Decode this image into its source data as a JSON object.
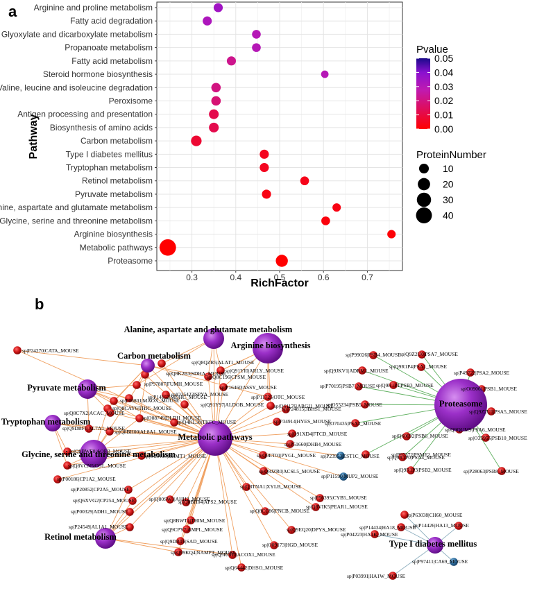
{
  "chart_data": [
    {
      "type": "scatter",
      "panel_label": "a",
      "title": "",
      "xlabel": "RichFactor",
      "ylabel": "Pathway",
      "xlim": [
        0.22,
        0.78
      ],
      "xticks": [
        "0.3",
        "0.4",
        "0.5",
        "0.6",
        "0.7"
      ],
      "grid": true,
      "points": [
        {
          "pathway": "Arginine and proline metabolism",
          "richfactor": 0.36,
          "pvalue": 0.035,
          "proteins": 8
        },
        {
          "pathway": "Fatty acid degradation",
          "richfactor": 0.335,
          "pvalue": 0.032,
          "proteins": 8
        },
        {
          "pathway": "Glyoxylate and dicarboxylate metabolism",
          "richfactor": 0.447,
          "pvalue": 0.03,
          "proteins": 7
        },
        {
          "pathway": "Propanoate metabolism",
          "richfactor": 0.447,
          "pvalue": 0.03,
          "proteins": 7
        },
        {
          "pathway": "Fatty acid metabolism",
          "richfactor": 0.39,
          "pvalue": 0.022,
          "proteins": 8
        },
        {
          "pathway": "Steroid hormone biosynthesis",
          "richfactor": 0.603,
          "pvalue": 0.03,
          "proteins": 4
        },
        {
          "pathway": "Valine, leucine and isoleucine degradation",
          "richfactor": 0.355,
          "pvalue": 0.02,
          "proteins": 9
        },
        {
          "pathway": "Peroxisome",
          "richfactor": 0.355,
          "pvalue": 0.018,
          "proteins": 9
        },
        {
          "pathway": "Antigen processing and presentation",
          "richfactor": 0.35,
          "pvalue": 0.012,
          "proteins": 10
        },
        {
          "pathway": "Biosynthesis of amino acids",
          "richfactor": 0.35,
          "pvalue": 0.012,
          "proteins": 10
        },
        {
          "pathway": "Carbon metabolism",
          "richfactor": 0.31,
          "pvalue": 0.008,
          "proteins": 13
        },
        {
          "pathway": "Type I diabetes mellitus",
          "richfactor": 0.465,
          "pvalue": 0.005,
          "proteins": 8
        },
        {
          "pathway": "Tryptophan metabolism",
          "richfactor": 0.465,
          "pvalue": 0.005,
          "proteins": 8
        },
        {
          "pathway": "Retinol metabolism",
          "richfactor": 0.557,
          "pvalue": 0.004,
          "proteins": 7
        },
        {
          "pathway": "Pyruvate metabolism",
          "richfactor": 0.47,
          "pvalue": 0.003,
          "proteins": 8
        },
        {
          "pathway": "Alanine, aspartate and glutamate metabolism",
          "richfactor": 0.63,
          "pvalue": 0.003,
          "proteins": 6
        },
        {
          "pathway": "Glycine, serine and threonine metabolism",
          "richfactor": 0.605,
          "pvalue": 0.002,
          "proteins": 7
        },
        {
          "pathway": "Arginine biosynthesis",
          "richfactor": 0.755,
          "pvalue": 0.001,
          "proteins": 6
        },
        {
          "pathway": "Metabolic pathways",
          "richfactor": 0.245,
          "pvalue": 0.0,
          "proteins": 44
        },
        {
          "pathway": "Proteasome",
          "richfactor": 0.505,
          "pvalue": 0.0,
          "proteins": 19
        }
      ],
      "color_legend": {
        "title": "Pvalue",
        "ticks": [
          "0.05",
          "0.04",
          "0.03",
          "0.02",
          "0.01",
          "0.00"
        ],
        "range": [
          0.0,
          0.05
        ],
        "low_color": "#ff0000",
        "mid_color": "#a010d0",
        "high_color": "#1a0a8a"
      },
      "size_legend": {
        "title": "ProteinNumber",
        "values": [
          10,
          20,
          30,
          40
        ],
        "labels": [
          "10",
          "20",
          "30",
          "40"
        ]
      }
    },
    {
      "type": "network",
      "panel_label": "b",
      "hubs": [
        {
          "id": "metabolic",
          "label": "Metabolic pathways",
          "size": 44
        },
        {
          "id": "proteasome",
          "label": "Proteasome",
          "size": 19
        },
        {
          "id": "alanine",
          "label": "Alanine, aspartate and glutamate metabolism",
          "size": 6
        },
        {
          "id": "arginine",
          "label": "Arginine biosynthesis",
          "size": 6
        },
        {
          "id": "carbon",
          "label": "Carbon metabolism",
          "size": 13
        },
        {
          "id": "pyruvate",
          "label": "Pyruvate metabolism",
          "size": 8
        },
        {
          "id": "tryptophan",
          "label": "Tryptophan metabolism",
          "size": 8
        },
        {
          "id": "glycine",
          "label": "Glycine, serine and threonine metabolism",
          "size": 7
        },
        {
          "id": "retinol",
          "label": "Retinol metabolism",
          "size": 7
        },
        {
          "id": "diabetes",
          "label": "Type I diabetes mellitus",
          "size": 8
        }
      ],
      "metabolic_nodes": [
        {
          "label": "sp|P24270|CATA_MOUSE",
          "kind": "up"
        },
        {
          "label": "sp|Q8QZR5|ALAT1_MOUSE",
          "kind": "up"
        },
        {
          "label": "sp|Q8K2B3|SDHA_MOUSE",
          "kind": "up"
        },
        {
          "label": "sp|Q91YI0|ARLY_MOUSE",
          "kind": "up"
        },
        {
          "label": "sp|Q8C196|CPSM_MOUSE",
          "kind": "up"
        },
        {
          "label": "sp|P97807|FUMH_MOUSE",
          "kind": "up"
        },
        {
          "label": "sp|P16460|ASSY_MOUSE",
          "kind": "up"
        },
        {
          "label": "sp|O35423|SPYA_MOUSE",
          "kind": "up"
        },
        {
          "label": "sp|P14152|MDHC_MOUSE",
          "kind": "up"
        },
        {
          "label": "sp|P11725|OTC_MOUSE",
          "kind": "up"
        },
        {
          "label": "sp|P06801|MAOX_MOUSE",
          "kind": "up"
        },
        {
          "label": "sp|Q91Y97|ALDOB_MOUSE",
          "kind": "up"
        },
        {
          "label": "sp|Q61176|ARGI1_MOUSE",
          "kind": "up"
        },
        {
          "label": "sp|Q8CAY6|THIC_MOUSE",
          "kind": "up"
        },
        {
          "label": "sp|O08749|DLDH_MOUSE",
          "kind": "up"
        },
        {
          "label": "sp|Q8C7X2|ACAC_MOUSE",
          "kind": "up"
        },
        {
          "label": "sp|Q4KL30|TKFC_MOUSE",
          "kind": "up"
        },
        {
          "label": "sp|Q9DBF1|AL7A1_MOUSE",
          "kind": "up"
        },
        {
          "label": "sp|Q8BH00|AL8A1_MOUSE",
          "kind": "up"
        },
        {
          "label": "sp|Q8BWF0|AOFB_MOUSE",
          "kind": "up"
        },
        {
          "label": "sp|O35490|BHMT1_MOUSE",
          "kind": "up"
        },
        {
          "label": "sp|Q8VCN5|CGL_MOUSE",
          "kind": "up"
        },
        {
          "label": "sp|P00186|CP1A2_MOUSE",
          "kind": "up"
        },
        {
          "label": "sp|P24815|3BHS1_MOUSE",
          "kind": "up"
        },
        {
          "label": "sp|P34914|HYES_MOUSE",
          "kind": "up"
        },
        {
          "label": "sp|Q91XD4|FTCD_MOUSE",
          "kind": "up"
        },
        {
          "label": "sp|P51660|DHB4_MOUSE",
          "kind": "up"
        },
        {
          "label": "sp|Q9ET01|PYGL_MOUSE",
          "kind": "up"
        },
        {
          "label": "sp|P23953|EST1C_MOUSE",
          "kind": "down"
        },
        {
          "label": "sp|Q8JZR0|ACSL5_MOUSE",
          "kind": "up"
        },
        {
          "label": "sp|P11590|MUP2_MOUSE",
          "kind": "down"
        },
        {
          "label": "sp|P20852|CP2A5_MOUSE",
          "kind": "up"
        },
        {
          "label": "sp|Q6XVG2|CP254_MOUSE",
          "kind": "up"
        },
        {
          "label": "sp|Q80SW1|AHH2_MOUSE",
          "kind": "up"
        },
        {
          "label": "sp|Q8BH04|APS2_MOUSE",
          "kind": "up"
        },
        {
          "label": "sp|Q3TNA1|XYLB_MOUSE",
          "kind": "up"
        },
        {
          "label": "sp|P56395|CYB5_MOUSE",
          "kind": "up"
        },
        {
          "label": "sp|Q8VIK5|PEAR1_MOUSE",
          "kind": "up"
        },
        {
          "label": "sp|P00329|ADH1_MOUSE",
          "kind": "up"
        },
        {
          "label": "sp|Q8BWT1|THIM_MOUSE",
          "kind": "up"
        },
        {
          "label": "sp|Q8CC86|PNCB_MOUSE",
          "kind": "up"
        },
        {
          "label": "sp|Q9CPY7|AMPL_MOUSE",
          "kind": "up"
        },
        {
          "label": "sp|Q9EQ20|DPYS_MOUSE",
          "kind": "up"
        },
        {
          "label": "sp|P24549|AL1A1_MOUSE",
          "kind": "up"
        },
        {
          "label": "sp|Q9DBT6|SAD_MOUSE",
          "kind": "up"
        },
        {
          "label": "sp|O09173|HGD_MOUSE",
          "kind": "up"
        },
        {
          "label": "sp|Q9R0H0|ACOX1_MOUSE",
          "kind": "up"
        },
        {
          "label": "sp|Q99KQ4|NAMPT_MOUSE",
          "kind": "up"
        },
        {
          "label": "sp|Q64442|DHSO_MOUSE",
          "kind": "up"
        }
      ],
      "proteasome_nodes": [
        {
          "label": "sp|P99026|PSB4_MOUSE",
          "kind": "up"
        },
        {
          "label": "sp|Q9Z2U0|PSA7_MOUSE",
          "kind": "up"
        },
        {
          "label": "sp|Q9JKV1|ADRM1_MOUSE",
          "kind": "up"
        },
        {
          "label": "sp|Q9R1P4|PSA1_MOUSE",
          "kind": "up"
        },
        {
          "label": "sp|P49722|PSA2_MOUSE",
          "kind": "up"
        },
        {
          "label": "sp|P70195|PSB7_MOUSE",
          "kind": "up"
        },
        {
          "label": "sp|Q9R1P1|PSB3_MOUSE",
          "kind": "up"
        },
        {
          "label": "sp|O09061|PSB1_MOUSE",
          "kind": "up"
        },
        {
          "label": "sp|O55234|PSB5_MOUSE",
          "kind": "up"
        },
        {
          "label": "sp|Q9Z2U1|PSA5_MOUSE",
          "kind": "up"
        },
        {
          "label": "sp|Q9QUM9|PSA6_MOUSE",
          "kind": "up"
        },
        {
          "label": "sp|O70435|PSA3_MOUSE",
          "kind": "up"
        },
        {
          "label": "sp|O35955|PSB10_MOUSE",
          "kind": "up"
        },
        {
          "label": "sp|Q60692|PSB6_MOUSE",
          "kind": "up"
        },
        {
          "label": "sp|P97372|PSME2_MOUSE",
          "kind": "up"
        },
        {
          "label": "sp|Q9R1P0|PSA4_MOUSE",
          "kind": "up"
        },
        {
          "label": "sp|P28063|PSB8_MOUSE",
          "kind": "up"
        },
        {
          "label": "sp|Q9R1P3|PSB2_MOUSE",
          "kind": "up"
        }
      ],
      "diabetes_nodes": [
        {
          "label": "sp|P63038|CH60_MOUSE",
          "kind": "up"
        },
        {
          "label": "sp|P14434|HA18_MOUSE",
          "kind": "up"
        },
        {
          "label": "sp|P14426|HA13_MOUSE",
          "kind": "up"
        },
        {
          "label": "sp|P04223|HA1K_MOUSE",
          "kind": "up"
        },
        {
          "label": "sp|P97411|CA69_MOUSE",
          "kind": "down"
        },
        {
          "label": "sp|P03991|HA1W_MOUSE",
          "kind": "up"
        }
      ],
      "colors": {
        "hub": "#9b30c8",
        "up_node": "#d21a1a",
        "down_node": "#2f6fa0",
        "metabolic_edge": "#f0a060",
        "proteasome_edge": "#60b060",
        "diabetes_edge": "#8fb0c0"
      }
    }
  ]
}
